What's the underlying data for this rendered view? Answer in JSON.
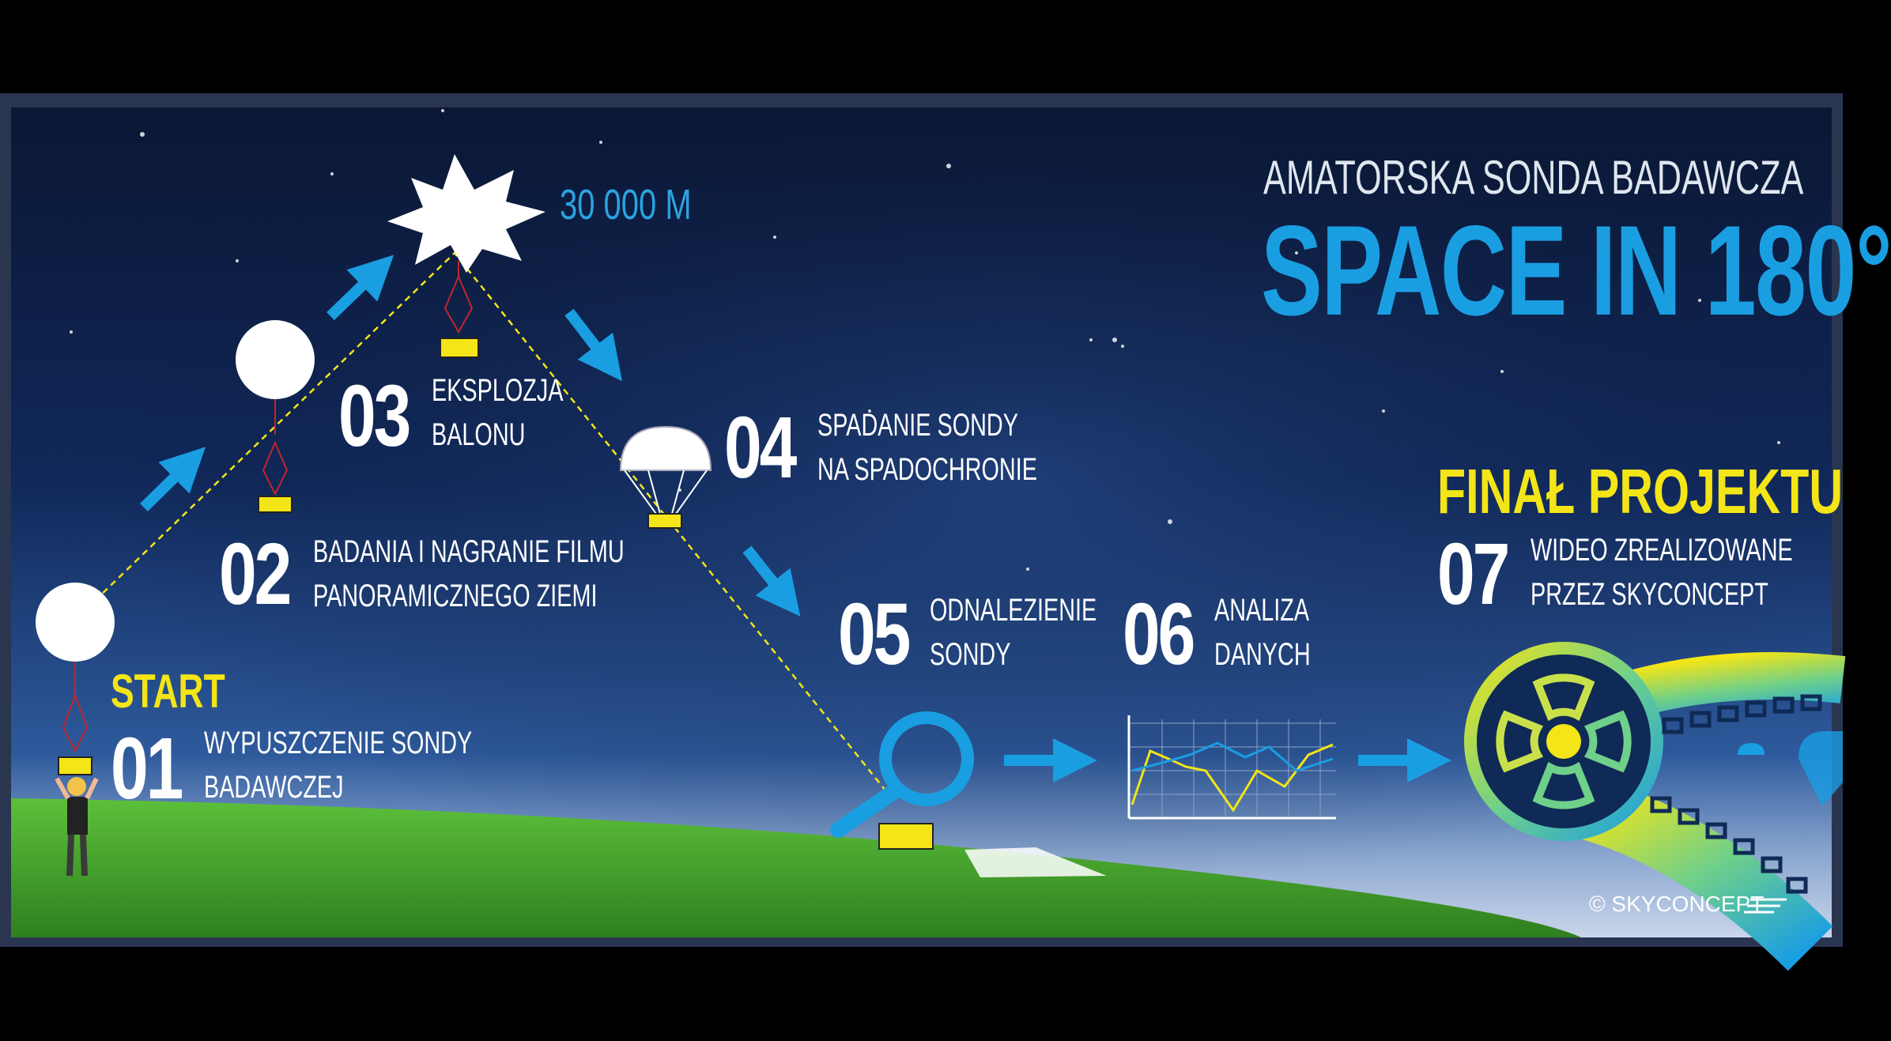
{
  "header": {
    "subtitle": "AMATORSKA SONDA BADAWCZA",
    "title": "SPACE IN 180°"
  },
  "altitude": "30 000 M",
  "start_label": "START",
  "final_label": "FINAŁ PROJEKTU",
  "steps": [
    {
      "number": "01",
      "line1": "WYPUSZCZENIE SONDY",
      "line2": "BADAWCZEJ"
    },
    {
      "number": "02",
      "line1": "BADANIA I NAGRANIE FILMU",
      "line2": "PANORAMICZNEGO ZIEMI"
    },
    {
      "number": "03",
      "line1": "EKSPLOZJA",
      "line2": "BALONU"
    },
    {
      "number": "04",
      "line1": "SPADANIE SONDY",
      "line2": "NA SPADOCHRONIE"
    },
    {
      "number": "05",
      "line1": "ODNALEZIENIE",
      "line2": "SONDY"
    },
    {
      "number": "06",
      "line1": "ANALIZA",
      "line2": "DANYCH"
    },
    {
      "number": "07",
      "line1": "WIDEO ZREALIZOWANE",
      "line2": "PRZEZ SKYCONCEPT"
    }
  ],
  "copyright": "© SKYCONCEPT",
  "colors": {
    "accent_blue": "#1a9ee2",
    "accent_yellow": "#f3e517",
    "grass_green": "#4fae2e",
    "sky_dark": "#0a1633"
  },
  "icons": [
    "balloon-icon",
    "probe-box-icon",
    "explosion-icon",
    "parachute-icon",
    "magnifier-icon",
    "chart-icon",
    "film-reel-icon",
    "person-icon",
    "arrow-icon"
  ]
}
